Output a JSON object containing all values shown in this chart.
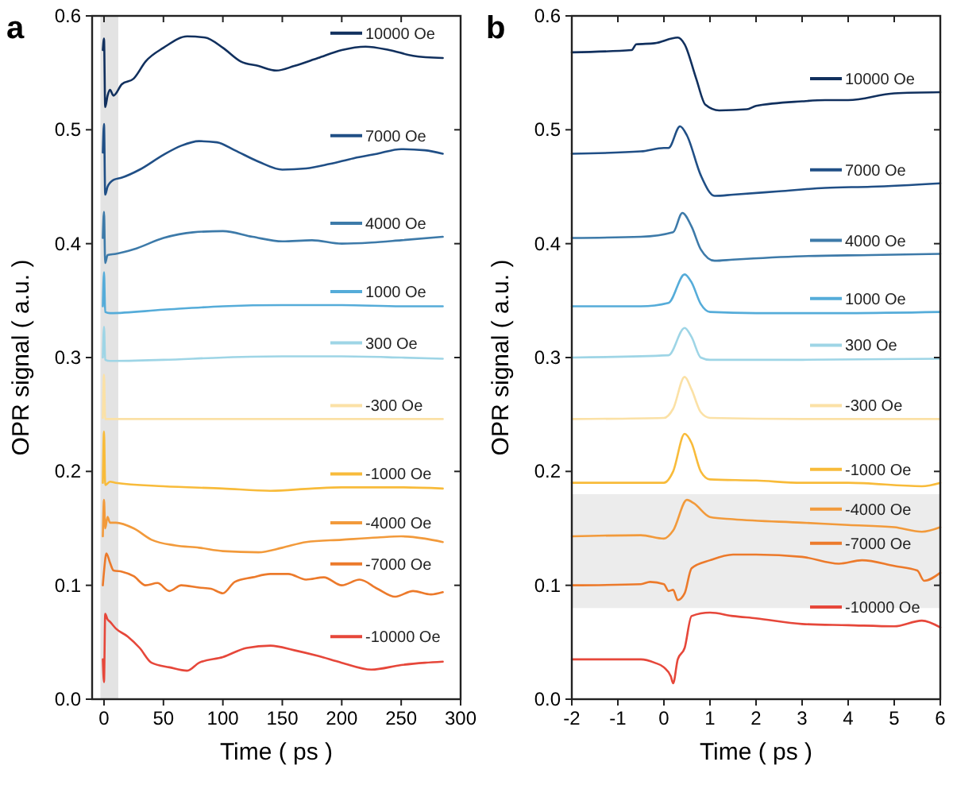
{
  "chart_data": [
    {
      "type": "line",
      "title": "a",
      "xlabel": "Time ( ps )",
      "ylabel": "OPR signal ( a.u. )",
      "xlim": [
        -10,
        300
      ],
      "ylim": [
        0,
        0.6
      ],
      "xticks": [
        0,
        50,
        100,
        150,
        200,
        250,
        300
      ],
      "yticks": [
        {
          "value": 0,
          "label": "0.0"
        },
        0.1,
        0.2,
        0.3,
        0.4,
        0.5,
        0.6
      ],
      "legend": "right",
      "bands": [
        {
          "axis": "x",
          "from": -3,
          "to": 12,
          "color": "#e3e3e3"
        }
      ],
      "series": [
        {
          "name": "10000 Oe",
          "color": "#11305e",
          "x": [
            -1,
            0,
            1,
            3,
            5,
            8,
            15,
            25,
            35,
            50,
            70,
            85,
            100,
            115,
            130,
            145,
            160,
            180,
            200,
            220,
            240,
            260,
            285
          ],
          "values": [
            0.57,
            0.58,
            0.52,
            0.53,
            0.535,
            0.53,
            0.54,
            0.545,
            0.56,
            0.572,
            0.582,
            0.581,
            0.572,
            0.56,
            0.556,
            0.552,
            0.556,
            0.563,
            0.57,
            0.573,
            0.57,
            0.565,
            0.563
          ]
        },
        {
          "name": "7000 Oe",
          "color": "#204f86",
          "x": [
            -1,
            0,
            1,
            3,
            8,
            15,
            30,
            50,
            65,
            80,
            95,
            110,
            130,
            150,
            170,
            190,
            210,
            230,
            250,
            270,
            285
          ],
          "values": [
            0.48,
            0.505,
            0.443,
            0.45,
            0.456,
            0.458,
            0.465,
            0.478,
            0.486,
            0.49,
            0.489,
            0.482,
            0.472,
            0.465,
            0.466,
            0.47,
            0.475,
            0.479,
            0.483,
            0.482,
            0.479
          ]
        },
        {
          "name": "4000 Oe",
          "color": "#3d7aa9",
          "x": [
            -1,
            0,
            1,
            3,
            10,
            25,
            50,
            75,
            100,
            125,
            150,
            175,
            200,
            225,
            250,
            285
          ],
          "values": [
            0.405,
            0.428,
            0.383,
            0.39,
            0.391,
            0.395,
            0.405,
            0.41,
            0.411,
            0.406,
            0.402,
            0.403,
            0.4,
            0.401,
            0.403,
            0.406
          ]
        },
        {
          "name": "1000 Oe",
          "color": "#55acd9",
          "x": [
            -1,
            0,
            1,
            5,
            50,
            100,
            150,
            200,
            250,
            285
          ],
          "values": [
            0.345,
            0.375,
            0.34,
            0.339,
            0.342,
            0.345,
            0.346,
            0.346,
            0.345,
            0.345
          ]
        },
        {
          "name": "300 Oe",
          "color": "#9ed5e6",
          "x": [
            -1,
            0,
            1,
            5,
            50,
            100,
            150,
            200,
            250,
            285
          ],
          "values": [
            0.3,
            0.327,
            0.298,
            0.297,
            0.298,
            0.3,
            0.301,
            0.301,
            0.3,
            0.299
          ]
        },
        {
          "name": "-300 Oe",
          "color": "#fbe1a6",
          "x": [
            -1,
            0,
            1,
            50,
            100,
            150,
            200,
            250,
            285
          ],
          "values": [
            0.247,
            0.285,
            0.246,
            0.246,
            0.246,
            0.246,
            0.246,
            0.246,
            0.246
          ]
        },
        {
          "name": "-1000 Oe",
          "color": "#f8bb3a",
          "x": [
            -1,
            0,
            1,
            5,
            10,
            50,
            100,
            140,
            175,
            200,
            250,
            285
          ],
          "values": [
            0.19,
            0.235,
            0.188,
            0.191,
            0.19,
            0.187,
            0.185,
            0.183,
            0.185,
            0.186,
            0.186,
            0.185
          ]
        },
        {
          "name": "-4000 Oe",
          "color": "#f29a3b",
          "x": [
            -1,
            0,
            1,
            3,
            5,
            10,
            25,
            40,
            60,
            80,
            100,
            130,
            150,
            170,
            200,
            230,
            250,
            270,
            285
          ],
          "values": [
            0.143,
            0.175,
            0.15,
            0.16,
            0.155,
            0.155,
            0.15,
            0.14,
            0.135,
            0.133,
            0.13,
            0.129,
            0.133,
            0.138,
            0.14,
            0.142,
            0.143,
            0.141,
            0.138
          ]
        },
        {
          "name": "-7000 Oe",
          "color": "#ec7a2b",
          "x": [
            -1,
            0,
            2,
            5,
            8,
            15,
            25,
            35,
            45,
            55,
            65,
            80,
            90,
            100,
            110,
            125,
            140,
            155,
            170,
            185,
            200,
            215,
            230,
            245,
            260,
            275,
            285
          ],
          "values": [
            0.1,
            0.112,
            0.128,
            0.12,
            0.113,
            0.112,
            0.108,
            0.1,
            0.102,
            0.095,
            0.1,
            0.098,
            0.097,
            0.093,
            0.103,
            0.107,
            0.11,
            0.11,
            0.105,
            0.107,
            0.1,
            0.105,
            0.097,
            0.09,
            0.095,
            0.092,
            0.094
          ]
        },
        {
          "name": "-10000 Oe",
          "color": "#e6473a",
          "x": [
            -1,
            0,
            1,
            3,
            5,
            10,
            20,
            30,
            40,
            55,
            70,
            80,
            100,
            120,
            140,
            160,
            180,
            200,
            225,
            250,
            270,
            285
          ],
          "values": [
            0.035,
            0.015,
            0.075,
            0.07,
            0.068,
            0.062,
            0.055,
            0.045,
            0.032,
            0.028,
            0.025,
            0.032,
            0.037,
            0.045,
            0.047,
            0.043,
            0.038,
            0.032,
            0.026,
            0.03,
            0.032,
            0.033
          ]
        }
      ]
    },
    {
      "type": "line",
      "title": "b",
      "xlabel": "Time ( ps )",
      "ylabel": "OPR signal ( a.u. )",
      "xlim": [
        -2,
        6
      ],
      "ylim": [
        0,
        0.6
      ],
      "xticks": [
        -2,
        -1,
        0,
        1,
        2,
        3,
        4,
        5,
        6
      ],
      "yticks": [
        {
          "value": 0,
          "label": "0.0"
        },
        0.1,
        0.2,
        0.3,
        0.4,
        0.5,
        0.6
      ],
      "legend": "right",
      "bands": [
        {
          "axis": "y",
          "from": 0.08,
          "to": 0.18,
          "color": "#ececec"
        }
      ],
      "series": [
        {
          "name": "10000 Oe",
          "color": "#11305e",
          "x": [
            -2,
            -0.7,
            -0.6,
            -0.2,
            0.3,
            0.45,
            0.7,
            0.9,
            1.2,
            1.8,
            2,
            3,
            3.5,
            4,
            5,
            6
          ],
          "values": [
            0.568,
            0.57,
            0.575,
            0.576,
            0.581,
            0.575,
            0.545,
            0.522,
            0.517,
            0.518,
            0.521,
            0.525,
            0.526,
            0.526,
            0.532,
            0.533
          ]
        },
        {
          "name": "7000 Oe",
          "color": "#204f86",
          "x": [
            -2,
            -0.5,
            0,
            0.1,
            0.35,
            0.5,
            0.8,
            1.1,
            1.5,
            2.5,
            3.5,
            4.5,
            6
          ],
          "values": [
            0.479,
            0.481,
            0.484,
            0.484,
            0.503,
            0.495,
            0.46,
            0.442,
            0.443,
            0.446,
            0.449,
            0.45,
            0.453
          ]
        },
        {
          "name": "4000 Oe",
          "color": "#3d7aa9",
          "x": [
            -2,
            -0.5,
            0.2,
            0.4,
            0.6,
            0.8,
            1.1,
            1.5,
            3,
            4.5,
            6
          ],
          "values": [
            0.405,
            0.406,
            0.41,
            0.427,
            0.415,
            0.395,
            0.385,
            0.386,
            0.389,
            0.39,
            0.391
          ]
        },
        {
          "name": "1000 Oe",
          "color": "#55acd9",
          "x": [
            -2,
            -0.5,
            0.1,
            0.45,
            0.6,
            0.8,
            1,
            2,
            4,
            6
          ],
          "values": [
            0.345,
            0.345,
            0.348,
            0.373,
            0.366,
            0.347,
            0.34,
            0.339,
            0.339,
            0.34
          ]
        },
        {
          "name": "300 Oe",
          "color": "#9ed5e6",
          "x": [
            -2,
            0.1,
            0.45,
            0.6,
            0.8,
            1,
            3,
            6
          ],
          "values": [
            0.3,
            0.302,
            0.326,
            0.318,
            0.3,
            0.298,
            0.298,
            0.299
          ]
        },
        {
          "name": "-300 Oe",
          "color": "#fbe1a6",
          "x": [
            -2,
            0,
            0.2,
            0.45,
            0.6,
            0.8,
            1,
            3,
            6
          ],
          "values": [
            0.246,
            0.247,
            0.255,
            0.283,
            0.272,
            0.252,
            0.247,
            0.246,
            0.246
          ]
        },
        {
          "name": "-1000 Oe",
          "color": "#f8bb3a",
          "x": [
            -2,
            0,
            0.2,
            0.45,
            0.6,
            0.8,
            1,
            2,
            3,
            4,
            5.6,
            6
          ],
          "values": [
            0.19,
            0.19,
            0.2,
            0.233,
            0.225,
            0.2,
            0.193,
            0.192,
            0.19,
            0.19,
            0.187,
            0.19
          ]
        },
        {
          "name": "-4000 Oe",
          "color": "#f29a3b",
          "x": [
            -2,
            -0.5,
            0,
            0.2,
            0.5,
            0.65,
            1,
            1.5,
            3,
            4,
            5,
            5.6,
            6
          ],
          "values": [
            0.143,
            0.144,
            0.141,
            0.148,
            0.175,
            0.172,
            0.16,
            0.158,
            0.155,
            0.153,
            0.151,
            0.147,
            0.151
          ]
        },
        {
          "name": "-7000 Oe",
          "color": "#ec7a2b",
          "x": [
            -2,
            -0.5,
            -0.3,
            0,
            0.1,
            0.2,
            0.3,
            0.45,
            0.6,
            1,
            1.5,
            2,
            3,
            3.8,
            4.3,
            5,
            5.5,
            5.65,
            6
          ],
          "values": [
            0.1,
            0.101,
            0.103,
            0.101,
            0.095,
            0.096,
            0.087,
            0.093,
            0.115,
            0.122,
            0.127,
            0.127,
            0.125,
            0.119,
            0.122,
            0.117,
            0.113,
            0.104,
            0.111
          ]
        },
        {
          "name": "-10000 Oe",
          "color": "#e6473a",
          "x": [
            -2,
            -0.5,
            -0.2,
            0,
            0.15,
            0.2,
            0.3,
            0.45,
            0.6,
            1,
            1.5,
            2,
            3,
            4,
            5,
            5.6,
            6
          ],
          "values": [
            0.035,
            0.035,
            0.032,
            0.028,
            0.02,
            0.014,
            0.035,
            0.045,
            0.073,
            0.076,
            0.073,
            0.071,
            0.066,
            0.065,
            0.064,
            0.069,
            0.063
          ]
        }
      ]
    }
  ]
}
